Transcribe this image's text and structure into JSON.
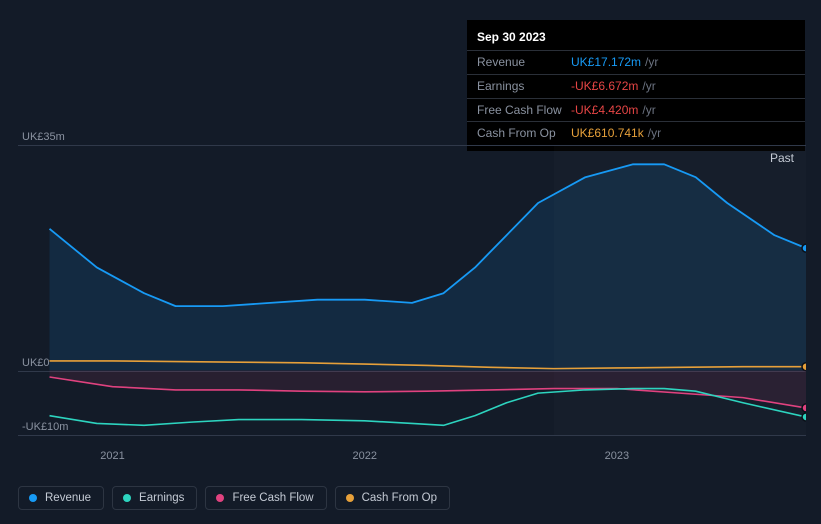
{
  "tooltip": {
    "date": "Sep 30 2023",
    "rows": [
      {
        "label": "Revenue",
        "value": "UK£17.172m",
        "unit": "/yr",
        "colorClass": "val-blue"
      },
      {
        "label": "Earnings",
        "value": "-UK£6.672m",
        "unit": "/yr",
        "colorClass": "val-red"
      },
      {
        "label": "Free Cash Flow",
        "value": "-UK£4.420m",
        "unit": "/yr",
        "colorClass": "val-red"
      },
      {
        "label": "Cash From Op",
        "value": "UK£610.741k",
        "unit": "/yr",
        "colorClass": "val-orange"
      }
    ]
  },
  "chart": {
    "type": "area-line",
    "background": "#131b28",
    "ymin": -10,
    "ymax": 35,
    "ylabels": [
      {
        "text": "UK£35m",
        "val": 35
      },
      {
        "text": "UK£0",
        "val": 0
      },
      {
        "text": "-UK£10m",
        "val": -10
      }
    ],
    "xmin": 0,
    "xmax": 100,
    "xticks": [
      {
        "text": "2021",
        "pos": 12
      },
      {
        "text": "2022",
        "pos": 44
      },
      {
        "text": "2023",
        "pos": 76
      }
    ],
    "past_label": "Past",
    "highlight_x": 68,
    "grid_color": "#30394a",
    "series": [
      {
        "name": "Revenue",
        "color": "#179af5",
        "fill": "rgba(23,154,245,0.12)",
        "area": true,
        "width": 1.8,
        "points": [
          [
            4,
            22
          ],
          [
            10,
            16
          ],
          [
            16,
            12
          ],
          [
            20,
            10
          ],
          [
            26,
            10
          ],
          [
            32,
            10.5
          ],
          [
            38,
            11
          ],
          [
            44,
            11
          ],
          [
            50,
            10.5
          ],
          [
            54,
            12
          ],
          [
            58,
            16
          ],
          [
            62,
            21
          ],
          [
            66,
            26
          ],
          [
            72,
            30
          ],
          [
            78,
            32
          ],
          [
            82,
            32
          ],
          [
            86,
            30
          ],
          [
            90,
            26
          ],
          [
            96,
            21
          ],
          [
            100,
            19
          ]
        ]
      },
      {
        "name": "Cash From Op",
        "color": "#e6a03a",
        "fill": null,
        "area": false,
        "width": 1.6,
        "points": [
          [
            4,
            1.5
          ],
          [
            12,
            1.5
          ],
          [
            20,
            1.4
          ],
          [
            28,
            1.3
          ],
          [
            36,
            1.2
          ],
          [
            44,
            1.0
          ],
          [
            52,
            0.8
          ],
          [
            60,
            0.5
          ],
          [
            68,
            0.3
          ],
          [
            76,
            0.4
          ],
          [
            84,
            0.5
          ],
          [
            92,
            0.6
          ],
          [
            100,
            0.6
          ]
        ]
      },
      {
        "name": "Free Cash Flow",
        "color": "#e0427f",
        "fill": "rgba(224,66,127,0.10)",
        "area": true,
        "width": 1.6,
        "points": [
          [
            4,
            -1
          ],
          [
            12,
            -2.5
          ],
          [
            20,
            -3
          ],
          [
            28,
            -3
          ],
          [
            36,
            -3.2
          ],
          [
            44,
            -3.3
          ],
          [
            52,
            -3.2
          ],
          [
            60,
            -3
          ],
          [
            68,
            -2.8
          ],
          [
            76,
            -2.8
          ],
          [
            84,
            -3.5
          ],
          [
            92,
            -4.2
          ],
          [
            100,
            -5.8
          ]
        ]
      },
      {
        "name": "Earnings",
        "color": "#2dd4bf",
        "fill": null,
        "area": false,
        "width": 1.6,
        "points": [
          [
            4,
            -7
          ],
          [
            10,
            -8.2
          ],
          [
            16,
            -8.5
          ],
          [
            22,
            -8
          ],
          [
            28,
            -7.6
          ],
          [
            36,
            -7.6
          ],
          [
            44,
            -7.8
          ],
          [
            50,
            -8.2
          ],
          [
            54,
            -8.5
          ],
          [
            58,
            -7
          ],
          [
            62,
            -5
          ],
          [
            66,
            -3.5
          ],
          [
            72,
            -3
          ],
          [
            78,
            -2.8
          ],
          [
            82,
            -2.8
          ],
          [
            86,
            -3.2
          ],
          [
            92,
            -5
          ],
          [
            100,
            -7.2
          ]
        ]
      }
    ],
    "end_markers": true
  },
  "legend": [
    {
      "label": "Revenue",
      "color": "#179af5"
    },
    {
      "label": "Earnings",
      "color": "#2dd4bf"
    },
    {
      "label": "Free Cash Flow",
      "color": "#e0427f"
    },
    {
      "label": "Cash From Op",
      "color": "#e6a03a"
    }
  ]
}
